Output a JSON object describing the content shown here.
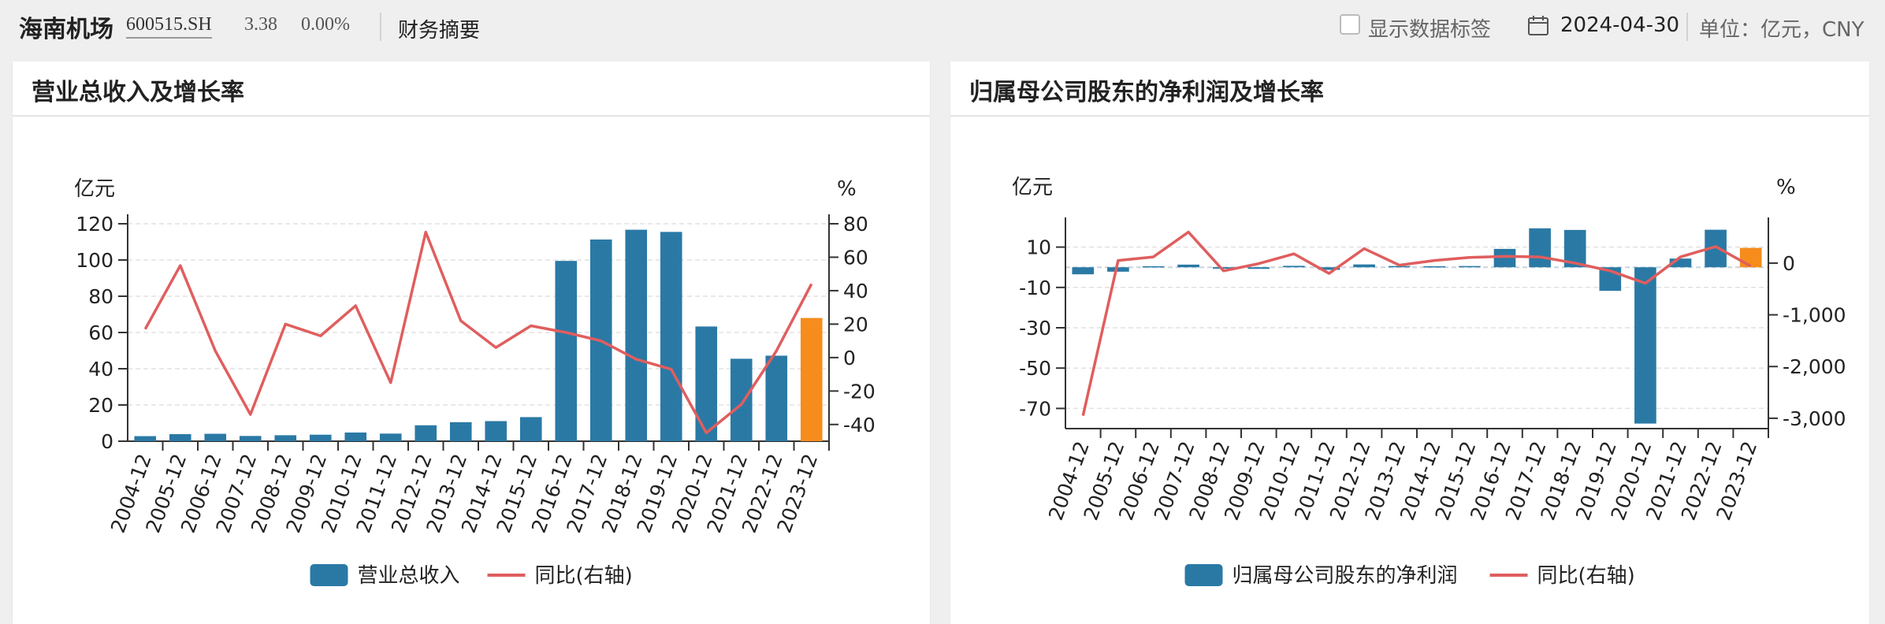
{
  "header": {
    "stock_name": "海南机场",
    "stock_code": "600515.SH",
    "price": "3.38",
    "change_pct": "0.00%",
    "tab_label": "财务摘要",
    "show_labels_text": "显示数据标签",
    "date": "2024-04-30",
    "unit_text": "单位：亿元，CNY"
  },
  "panels": {
    "left": {
      "title": "营业总收入及增长率"
    },
    "right": {
      "title": "归属母公司股东的净利润及增长率"
    }
  },
  "colors": {
    "bar": "#2a79a5",
    "bar_highlight": "#f68c1c",
    "line": "#e05e5e",
    "axis": "#333333",
    "grid": "#e2e2e2"
  },
  "chart_data": [
    {
      "type": "bar",
      "title": "营业总收入及增长率",
      "y_left_unit": "亿元",
      "y_right_unit": "%",
      "categories": [
        "2004-12",
        "2005-12",
        "2006-12",
        "2007-12",
        "2008-12",
        "2009-12",
        "2010-12",
        "2011-12",
        "2012-12",
        "2013-12",
        "2014-12",
        "2015-12",
        "2016-12",
        "2017-12",
        "2018-12",
        "2019-12",
        "2020-12",
        "2021-12",
        "2022-12",
        "2023-12"
      ],
      "series": [
        {
          "name": "营业总收入",
          "type": "bar",
          "axis": "left",
          "values": [
            2.8,
            3.9,
            4.1,
            2.9,
            3.3,
            3.6,
            4.8,
            4.2,
            8.8,
            10.5,
            11.1,
            13.3,
            99.5,
            111.3,
            116.7,
            115.5,
            63.3,
            45.5,
            47.2,
            68.0
          ]
        },
        {
          "name": "同比(右轴)",
          "type": "line",
          "axis": "right",
          "values": [
            17,
            55,
            4,
            -34,
            20,
            13,
            31,
            -15,
            75,
            22,
            6,
            19,
            15,
            10,
            -1,
            -7,
            -45,
            -28,
            4,
            44
          ]
        }
      ],
      "ylim_left": [
        0,
        120
      ],
      "yticks_left": [
        0,
        20,
        40,
        60,
        80,
        100,
        120
      ],
      "ylim_right": [
        -50,
        80
      ],
      "yticks_right": [
        -40,
        -20,
        0,
        20,
        40,
        60,
        80
      ],
      "highlight_last": true,
      "grid": true,
      "legend_position": "bottom"
    },
    {
      "type": "bar",
      "title": "归属母公司股东的净利润及增长率",
      "y_left_unit": "亿元",
      "y_right_unit": "%",
      "categories": [
        "2004-12",
        "2005-12",
        "2006-12",
        "2007-12",
        "2008-12",
        "2009-12",
        "2010-12",
        "2011-12",
        "2012-12",
        "2013-12",
        "2014-12",
        "2015-12",
        "2016-12",
        "2017-12",
        "2018-12",
        "2019-12",
        "2020-12",
        "2021-12",
        "2022-12",
        "2023-12"
      ],
      "series": [
        {
          "name": "归属母公司股东的净利润",
          "type": "bar",
          "axis": "left",
          "values": [
            -3.5,
            -2.2,
            0.5,
            1.3,
            -0.7,
            -0.8,
            0.7,
            -1.3,
            1.4,
            0.6,
            0.5,
            0.6,
            9.1,
            19.3,
            18.5,
            -11.7,
            -77.5,
            4.3,
            18.6,
            9.6
          ]
        },
        {
          "name": "同比(右轴)",
          "type": "line",
          "axis": "right",
          "values": [
            -2950,
            50,
            120,
            600,
            -150,
            -10,
            180,
            -200,
            280,
            -40,
            50,
            110,
            130,
            120,
            0,
            -150,
            -390,
            120,
            320,
            -60
          ]
        }
      ],
      "ylim_left": [
        -80,
        20
      ],
      "yticks_left": [
        -70,
        -50,
        -30,
        -10,
        10
      ],
      "ylim_right": [
        -3200,
        700
      ],
      "yticks_right": [
        -3000,
        -2000,
        -1000,
        0
      ],
      "yticks_right_labels": [
        "-3,000",
        "-2,000",
        "-1,000",
        "0"
      ],
      "highlight_last": true,
      "grid": true,
      "legend_position": "bottom"
    }
  ]
}
